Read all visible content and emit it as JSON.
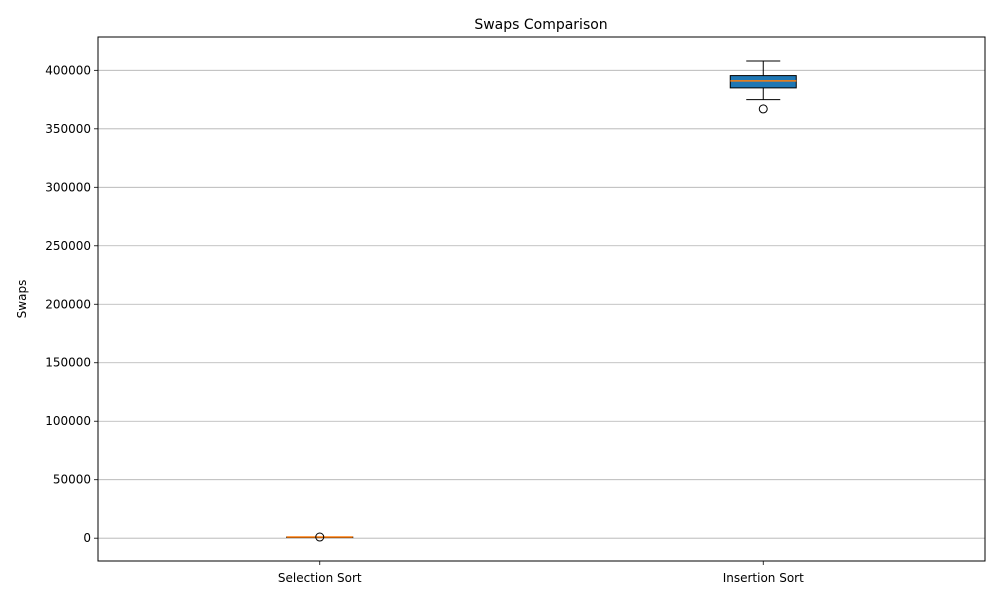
{
  "chart_data": {
    "type": "box",
    "title": "Swaps Comparison",
    "xlabel": "",
    "ylabel": "Swaps",
    "categories": [
      "Selection Sort",
      "Insertion Sort"
    ],
    "ylim": [
      -19500,
      428500
    ],
    "yticks": [
      0,
      50000,
      100000,
      150000,
      200000,
      250000,
      300000,
      350000,
      400000
    ],
    "grid": "y",
    "series": [
      {
        "category": "Selection Sort",
        "whisker_low": 990,
        "q1": 994,
        "median": 996,
        "q3": 997,
        "whisker_high": 999,
        "outliers": [
          1000
        ],
        "box_color": "#1f77b4",
        "median_color": "#ff7f0e"
      },
      {
        "category": "Insertion Sort",
        "whisker_low": 375000,
        "q1": 385000,
        "median": 391000,
        "q3": 395500,
        "whisker_high": 408000,
        "outliers": [
          367000
        ],
        "box_color": "#1f77b4",
        "median_color": "#ff7f0e"
      }
    ]
  }
}
